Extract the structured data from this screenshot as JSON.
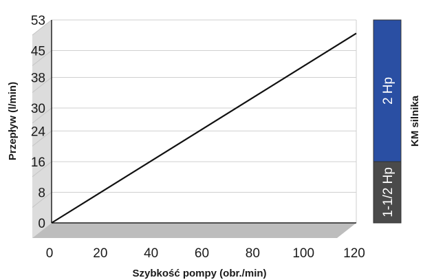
{
  "chart_data": {
    "type": "line",
    "title": "",
    "xlabel": "Szybkość pompy (obr./min)",
    "ylabel": "Przepływ (l/min)",
    "xlim": [
      0,
      120
    ],
    "ylim": [
      0,
      53
    ],
    "x_ticks": [
      0,
      20,
      40,
      60,
      80,
      100,
      120
    ],
    "y_ticks": [
      0,
      8,
      16,
      24,
      30,
      38,
      45,
      53
    ],
    "grid": true,
    "series": [
      {
        "x": [
          0,
          120
        ],
        "y": [
          0,
          49.5
        ]
      }
    ],
    "side_bar": {
      "label": "KM silnika",
      "segments": [
        {
          "label": "1-1/2 Hp",
          "from": 0,
          "to": 16,
          "color": "#4a4a4a"
        },
        {
          "label": "2 Hp",
          "from": 16,
          "to": 53,
          "color": "#2a4fa3"
        }
      ]
    },
    "colors": {
      "line": "#111111",
      "grid": "#cfcfcf",
      "floor": "#bdbdbd",
      "wall": "#dcdcdc"
    }
  }
}
